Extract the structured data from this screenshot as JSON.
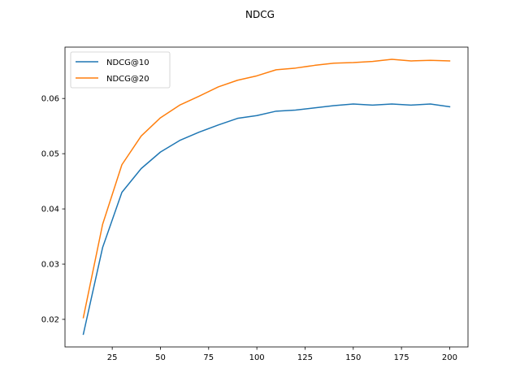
{
  "chart_data": {
    "type": "line",
    "title": "NDCG",
    "xlabel": "",
    "ylabel": "",
    "xlim": [
      0.5,
      209.5
    ],
    "ylim": [
      0.015,
      0.0693
    ],
    "xticks": [
      25,
      50,
      75,
      100,
      125,
      150,
      175,
      200
    ],
    "yticks": [
      0.02,
      0.03,
      0.04,
      0.05,
      0.06
    ],
    "xtick_labels": [
      "25",
      "50",
      "75",
      "100",
      "125",
      "150",
      "175",
      "200"
    ],
    "ytick_labels": [
      "0.02",
      "0.03",
      "0.04",
      "0.05",
      "0.06"
    ],
    "grid": false,
    "legend_position": "top-left",
    "x": [
      10,
      20,
      30,
      40,
      50,
      60,
      70,
      80,
      90,
      100,
      110,
      120,
      130,
      140,
      150,
      160,
      170,
      180,
      190,
      200
    ],
    "series": [
      {
        "name": "NDCG@10",
        "color": "#1f77b4",
        "values": [
          0.0173,
          0.033,
          0.043,
          0.0473,
          0.0503,
          0.0524,
          0.0539,
          0.0552,
          0.0564,
          0.0569,
          0.0577,
          0.0579,
          0.0583,
          0.0587,
          0.059,
          0.0588,
          0.059,
          0.0588,
          0.059,
          0.0585
        ]
      },
      {
        "name": "NDCG@20",
        "color": "#ff7f0e",
        "values": [
          0.0203,
          0.0372,
          0.048,
          0.0532,
          0.0565,
          0.0588,
          0.0604,
          0.0621,
          0.0633,
          0.0641,
          0.0652,
          0.0655,
          0.066,
          0.0664,
          0.0665,
          0.0667,
          0.0671,
          0.0668,
          0.0669,
          0.0668
        ]
      }
    ]
  }
}
